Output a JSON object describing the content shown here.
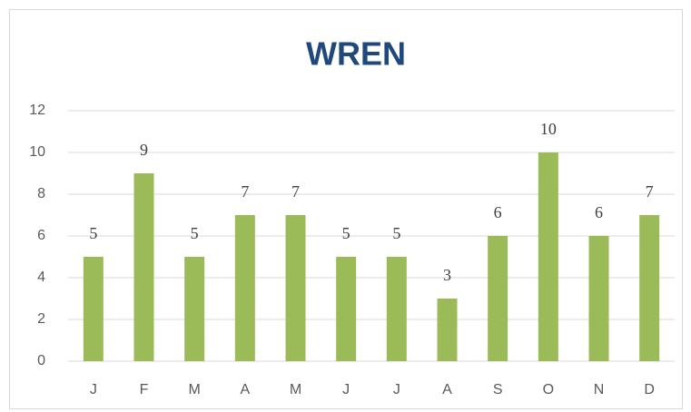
{
  "chart_data": {
    "type": "bar",
    "title": "WREN",
    "categories": [
      "J",
      "F",
      "M",
      "A",
      "M",
      "J",
      "J",
      "A",
      "S",
      "O",
      "N",
      "D"
    ],
    "values": [
      5,
      9,
      5,
      7,
      7,
      5,
      5,
      3,
      6,
      10,
      6,
      7
    ],
    "color": "#9bbb59",
    "ylim": [
      0,
      12
    ],
    "yticks": [
      0,
      2,
      4,
      6,
      8,
      10,
      12
    ],
    "grid": true,
    "data_labels": true
  }
}
